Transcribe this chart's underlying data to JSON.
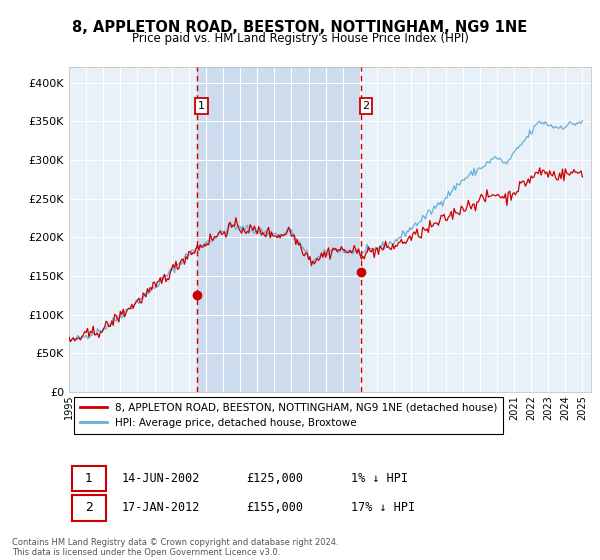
{
  "title": "8, APPLETON ROAD, BEESTON, NOTTINGHAM, NG9 1NE",
  "subtitle": "Price paid vs. HM Land Registry's House Price Index (HPI)",
  "ylim": [
    0,
    420000
  ],
  "xlim_start": 1995.0,
  "xlim_end": 2025.5,
  "plot_bg": "#e8f0f8",
  "hpi_color": "#6baed6",
  "price_color": "#cc0000",
  "vline_color": "#cc0000",
  "shade_color": "#c8d8ec",
  "marker1_date": 2002.45,
  "marker1_price": 125000,
  "marker2_date": 2012.05,
  "marker2_price": 155000,
  "legend_line1": "8, APPLETON ROAD, BEESTON, NOTTINGHAM, NG9 1NE (detached house)",
  "legend_line2": "HPI: Average price, detached house, Broxtowe",
  "table_row1_date": "14-JUN-2002",
  "table_row1_price": "£125,000",
  "table_row1_hpi": "1% ↓ HPI",
  "table_row2_date": "17-JAN-2012",
  "table_row2_price": "£155,000",
  "table_row2_hpi": "17% ↓ HPI",
  "footnote": "Contains HM Land Registry data © Crown copyright and database right 2024.\nThis data is licensed under the Open Government Licence v3.0.",
  "xticks": [
    1995,
    1996,
    1997,
    1998,
    1999,
    2000,
    2001,
    2002,
    2003,
    2004,
    2005,
    2006,
    2007,
    2008,
    2009,
    2010,
    2011,
    2012,
    2013,
    2014,
    2015,
    2016,
    2017,
    2018,
    2019,
    2020,
    2021,
    2022,
    2023,
    2024,
    2025
  ]
}
